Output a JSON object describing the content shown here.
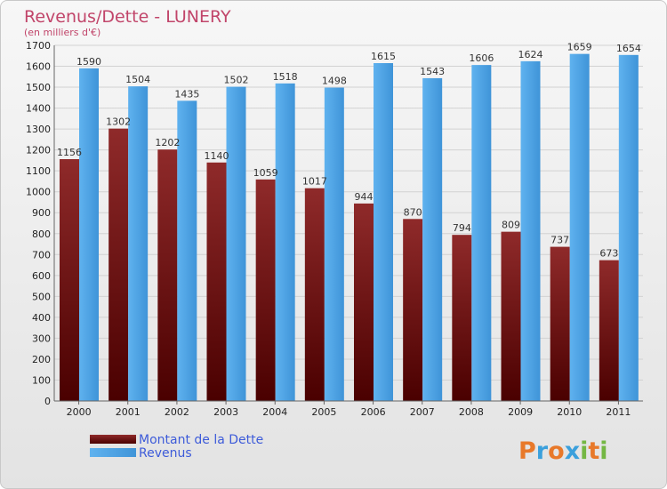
{
  "chart_data": {
    "type": "bar",
    "title": "Revenus/Dette - LUNERY",
    "subtitle": "(en milliers d'€)",
    "categories": [
      "2000",
      "2001",
      "2002",
      "2003",
      "2004",
      "2005",
      "2006",
      "2007",
      "2008",
      "2009",
      "2010",
      "2011"
    ],
    "series": [
      {
        "name": "Montant de la Dette",
        "color": "#7a1b1b",
        "values": [
          1156,
          1302,
          1202,
          1140,
          1059,
          1017,
          944,
          870,
          794,
          809,
          737,
          673
        ]
      },
      {
        "name": "Revenus",
        "color": "#4aa2e6",
        "values": [
          1590,
          1504,
          1435,
          1502,
          1518,
          1498,
          1615,
          1543,
          1606,
          1624,
          1659,
          1654
        ]
      }
    ],
    "ylim": [
      0,
      1700
    ],
    "ytick_step": 100,
    "grid": true,
    "legend_position": "bottom-left"
  },
  "logo": {
    "letters": [
      "P",
      "r",
      "o",
      "x",
      "i",
      "t",
      "i"
    ],
    "colors": [
      "#e8792a",
      "#3ba0dc",
      "#e8792a",
      "#3ba0dc",
      "#74b743",
      "#e8792a",
      "#74b743"
    ]
  }
}
